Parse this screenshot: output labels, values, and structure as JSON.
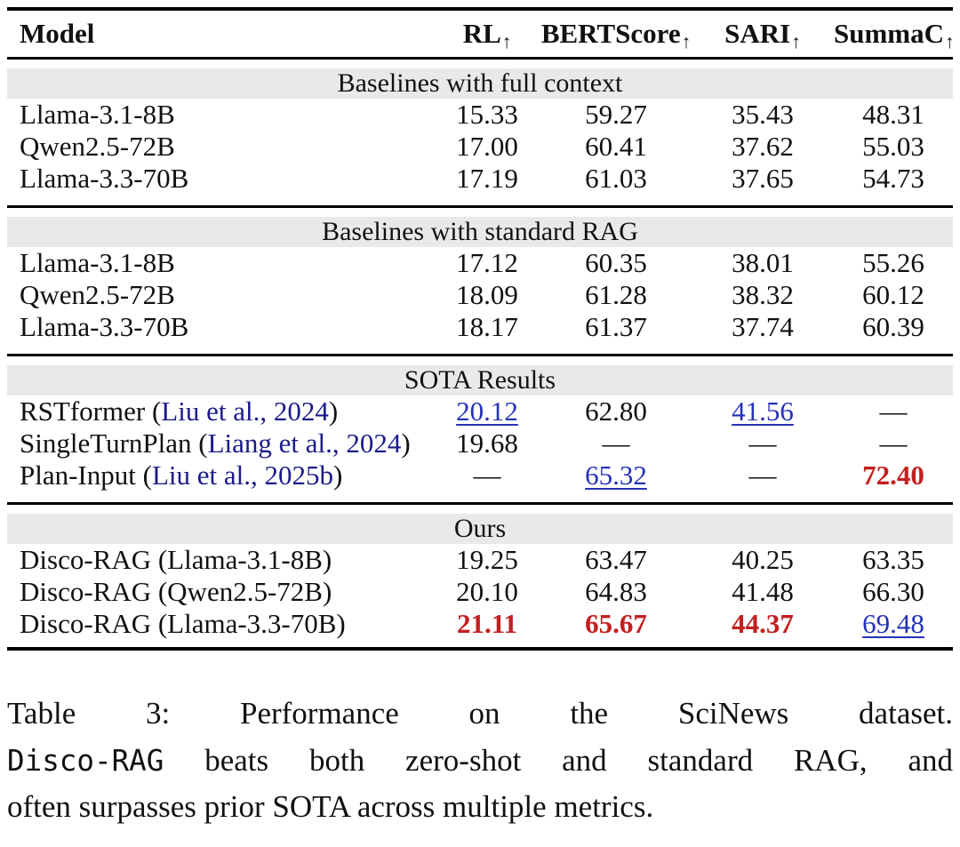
{
  "table": {
    "model_header": "Model",
    "metric_headers": [
      {
        "label": "RL",
        "arrow": "↑"
      },
      {
        "label": "BERTScore",
        "arrow": "↑"
      },
      {
        "label": "SARI",
        "arrow": "↑"
      },
      {
        "label": "SummaC",
        "arrow": "↑"
      }
    ],
    "sections": [
      {
        "title": "Baselines with full context",
        "rows": [
          {
            "model": "Llama-3.1-8B",
            "values": [
              {
                "text": "15.33",
                "style": "plain"
              },
              {
                "text": "59.27",
                "style": "plain"
              },
              {
                "text": "35.43",
                "style": "plain"
              },
              {
                "text": "48.31",
                "style": "plain"
              }
            ]
          },
          {
            "model": "Qwen2.5-72B",
            "values": [
              {
                "text": "17.00",
                "style": "plain"
              },
              {
                "text": "60.41",
                "style": "plain"
              },
              {
                "text": "37.62",
                "style": "plain"
              },
              {
                "text": "55.03",
                "style": "plain"
              }
            ]
          },
          {
            "model": "Llama-3.3-70B",
            "values": [
              {
                "text": "17.19",
                "style": "plain"
              },
              {
                "text": "61.03",
                "style": "plain"
              },
              {
                "text": "37.65",
                "style": "plain"
              },
              {
                "text": "54.73",
                "style": "plain"
              }
            ]
          }
        ]
      },
      {
        "title": "Baselines with standard RAG",
        "rows": [
          {
            "model": "Llama-3.1-8B",
            "values": [
              {
                "text": "17.12",
                "style": "plain"
              },
              {
                "text": "60.35",
                "style": "plain"
              },
              {
                "text": "38.01",
                "style": "plain"
              },
              {
                "text": "55.26",
                "style": "plain"
              }
            ]
          },
          {
            "model": "Qwen2.5-72B",
            "values": [
              {
                "text": "18.09",
                "style": "plain"
              },
              {
                "text": "61.28",
                "style": "plain"
              },
              {
                "text": "38.32",
                "style": "plain"
              },
              {
                "text": "60.12",
                "style": "plain"
              }
            ]
          },
          {
            "model": "Llama-3.3-70B",
            "values": [
              {
                "text": "18.17",
                "style": "plain"
              },
              {
                "text": "61.37",
                "style": "plain"
              },
              {
                "text": "37.74",
                "style": "plain"
              },
              {
                "text": "60.39",
                "style": "plain"
              }
            ]
          }
        ]
      },
      {
        "title": "SOTA Results",
        "rows": [
          {
            "model_parts": [
              {
                "text": "RSTformer ("
              },
              {
                "text": "Liu et al., 2024",
                "cite": true
              },
              {
                "text": ")"
              }
            ],
            "values": [
              {
                "text": "20.12",
                "style": "blue"
              },
              {
                "text": "62.80",
                "style": "plain"
              },
              {
                "text": "41.56",
                "style": "blue"
              },
              {
                "text": "—",
                "style": "dash"
              }
            ]
          },
          {
            "model_parts": [
              {
                "text": "SingleTurnPlan ("
              },
              {
                "text": "Liang et al., 2024",
                "cite": true
              },
              {
                "text": ")"
              }
            ],
            "values": [
              {
                "text": "19.68",
                "style": "plain"
              },
              {
                "text": "—",
                "style": "dash"
              },
              {
                "text": "—",
                "style": "dash"
              },
              {
                "text": "—",
                "style": "dash"
              }
            ]
          },
          {
            "model_parts": [
              {
                "text": "Plan-Input ("
              },
              {
                "text": "Liu et al., 2025b",
                "cite": true
              },
              {
                "text": ")"
              }
            ],
            "values": [
              {
                "text": "—",
                "style": "dash"
              },
              {
                "text": "65.32",
                "style": "blue"
              },
              {
                "text": "—",
                "style": "dash"
              },
              {
                "text": "72.40",
                "style": "red"
              }
            ]
          }
        ]
      },
      {
        "title": "Ours",
        "rows": [
          {
            "model": "Disco-RAG (Llama-3.1-8B)",
            "values": [
              {
                "text": "19.25",
                "style": "plain"
              },
              {
                "text": "63.47",
                "style": "plain"
              },
              {
                "text": "40.25",
                "style": "plain"
              },
              {
                "text": "63.35",
                "style": "plain"
              }
            ]
          },
          {
            "model": "Disco-RAG (Qwen2.5-72B)",
            "values": [
              {
                "text": "20.10",
                "style": "plain"
              },
              {
                "text": "64.83",
                "style": "plain"
              },
              {
                "text": "41.48",
                "style": "plain"
              },
              {
                "text": "66.30",
                "style": "plain"
              }
            ]
          },
          {
            "model": "Disco-RAG (Llama-3.3-70B)",
            "values": [
              {
                "text": "21.11",
                "style": "red"
              },
              {
                "text": "65.67",
                "style": "red"
              },
              {
                "text": "44.37",
                "style": "red"
              },
              {
                "text": "69.48",
                "style": "blue"
              }
            ]
          }
        ]
      }
    ]
  },
  "caption": {
    "line1": "Table 3: Performance on the SciNews dataset.",
    "line2_code": "Disco-RAG",
    "line2_rest": " beats both zero-shot and standard RAG, and",
    "line3": "often surpasses prior SOTA across multiple metrics."
  },
  "colors": {
    "citation_blue": "#1b1b8a",
    "best_prev_blue": "#2531b8",
    "best_red": "#c41f1f",
    "band_gray": "#e9e9e9"
  }
}
